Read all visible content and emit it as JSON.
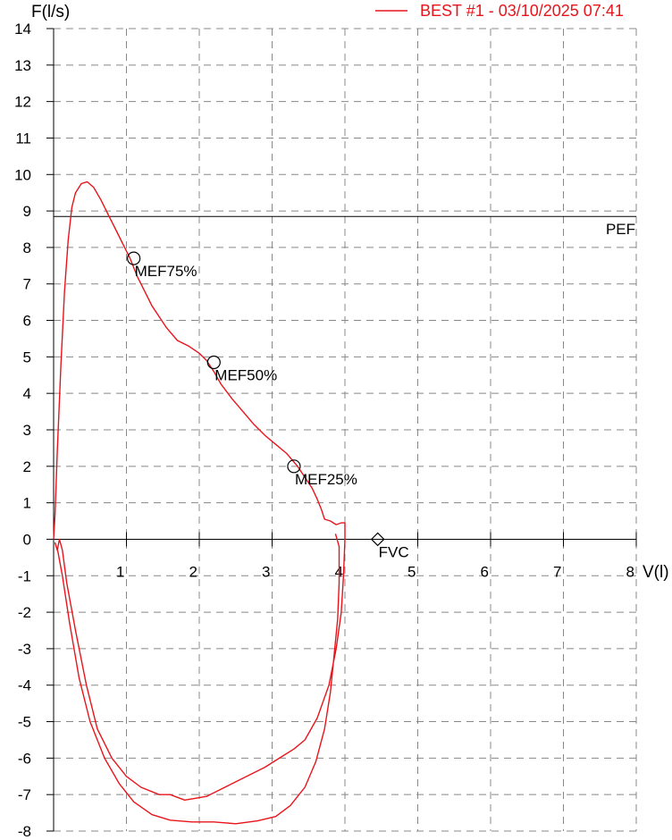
{
  "chart_data": {
    "type": "line",
    "ylabel": "F(l/s)",
    "xlabel": "V(l)",
    "xlim": [
      0,
      8
    ],
    "ylim": [
      -8,
      14
    ],
    "x_ticks": [
      "1",
      "2",
      "3",
      "4",
      "5",
      "6",
      "7",
      "8"
    ],
    "y_ticks": [
      "14",
      "13",
      "12",
      "11",
      "10",
      "9",
      "8",
      "7",
      "6",
      "5",
      "4",
      "3",
      "2",
      "1",
      "0",
      "-1",
      "-2",
      "-3",
      "-4",
      "-5",
      "-6",
      "-7",
      "-8"
    ],
    "grid": true,
    "legend": {
      "position": "top-right",
      "entries": [
        {
          "label": "BEST #1 - 03/10/2025  07:41",
          "color": "#e8141b"
        }
      ]
    },
    "series": [
      {
        "name": "BEST #1 - 03/10/2025  07:41",
        "color": "#e8141b",
        "expiration": [
          [
            0.0,
            0.0
          ],
          [
            0.02,
            0.7
          ],
          [
            0.05,
            2.4
          ],
          [
            0.1,
            4.8
          ],
          [
            0.15,
            6.8
          ],
          [
            0.2,
            8.2
          ],
          [
            0.25,
            9.1
          ],
          [
            0.3,
            9.5
          ],
          [
            0.38,
            9.75
          ],
          [
            0.46,
            9.8
          ],
          [
            0.55,
            9.65
          ],
          [
            0.65,
            9.3
          ],
          [
            0.75,
            8.9
          ],
          [
            0.85,
            8.5
          ],
          [
            0.95,
            8.1
          ],
          [
            1.05,
            7.7
          ],
          [
            1.15,
            7.2
          ],
          [
            1.25,
            6.8
          ],
          [
            1.35,
            6.4
          ],
          [
            1.45,
            6.1
          ],
          [
            1.55,
            5.8
          ],
          [
            1.7,
            5.45
          ],
          [
            1.85,
            5.3
          ],
          [
            2.0,
            5.1
          ],
          [
            2.1,
            4.9
          ],
          [
            2.2,
            4.6
          ],
          [
            2.3,
            4.25
          ],
          [
            2.45,
            3.85
          ],
          [
            2.6,
            3.5
          ],
          [
            2.75,
            3.15
          ],
          [
            2.9,
            2.85
          ],
          [
            3.05,
            2.6
          ],
          [
            3.2,
            2.35
          ],
          [
            3.35,
            2.0
          ],
          [
            3.45,
            1.7
          ],
          [
            3.55,
            1.4
          ],
          [
            3.62,
            1.1
          ],
          [
            3.68,
            0.8
          ],
          [
            3.72,
            0.55
          ],
          [
            3.8,
            0.5
          ],
          [
            3.88,
            0.4
          ],
          [
            3.95,
            0.45
          ],
          [
            4.0,
            0.45
          ],
          [
            4.0,
            0.0
          ]
        ],
        "inspiration": [
          [
            4.0,
            0.0
          ],
          [
            3.98,
            -1.0
          ],
          [
            3.95,
            -2.0
          ],
          [
            3.88,
            -3.0
          ],
          [
            3.78,
            -4.0
          ],
          [
            3.62,
            -4.9
          ],
          [
            3.45,
            -5.5
          ],
          [
            3.3,
            -5.75
          ],
          [
            3.1,
            -6.0
          ],
          [
            2.9,
            -6.25
          ],
          [
            2.7,
            -6.45
          ],
          [
            2.55,
            -6.6
          ],
          [
            2.4,
            -6.75
          ],
          [
            2.25,
            -6.9
          ],
          [
            2.1,
            -7.05
          ],
          [
            1.95,
            -7.1
          ],
          [
            1.8,
            -7.15
          ],
          [
            1.6,
            -7.0
          ],
          [
            1.45,
            -7.0
          ],
          [
            1.2,
            -6.8
          ],
          [
            1.0,
            -6.5
          ],
          [
            0.8,
            -6.0
          ],
          [
            0.6,
            -5.2
          ],
          [
            0.45,
            -4.0
          ],
          [
            0.3,
            -2.5
          ],
          [
            0.18,
            -1.2
          ],
          [
            0.12,
            -0.3
          ],
          [
            0.08,
            0.0
          ],
          [
            0.05,
            -0.3
          ],
          [
            0.02,
            -0.1
          ],
          [
            0.06,
            -0.35
          ],
          [
            0.12,
            -1.0
          ],
          [
            0.22,
            -2.3
          ],
          [
            0.35,
            -3.8
          ],
          [
            0.5,
            -5.0
          ],
          [
            0.7,
            -6.0
          ],
          [
            0.9,
            -6.7
          ],
          [
            1.1,
            -7.2
          ],
          [
            1.35,
            -7.55
          ],
          [
            1.6,
            -7.7
          ],
          [
            1.9,
            -7.75
          ],
          [
            2.2,
            -7.75
          ],
          [
            2.5,
            -7.8
          ],
          [
            2.8,
            -7.72
          ],
          [
            3.05,
            -7.6
          ],
          [
            3.25,
            -7.3
          ],
          [
            3.45,
            -6.8
          ],
          [
            3.6,
            -6.1
          ],
          [
            3.72,
            -5.2
          ],
          [
            3.8,
            -4.2
          ],
          [
            3.85,
            -3.2
          ],
          [
            3.9,
            -2.2
          ],
          [
            3.92,
            -1.2
          ],
          [
            3.92,
            -0.2
          ],
          [
            3.87,
            0.15
          ]
        ]
      }
    ],
    "reference_lines": [
      {
        "label": "PEF",
        "y": 8.85,
        "color": "#000000"
      }
    ],
    "markers": [
      {
        "label": "MEF75%",
        "x": 1.1,
        "y": 7.7,
        "shape": "circle"
      },
      {
        "label": "MEF50%",
        "x": 2.2,
        "y": 4.85,
        "shape": "circle"
      },
      {
        "label": "MEF25%",
        "x": 3.3,
        "y": 2.0,
        "shape": "circle"
      },
      {
        "label": "FVC",
        "x": 4.45,
        "y": 0.0,
        "shape": "diamond"
      }
    ]
  }
}
